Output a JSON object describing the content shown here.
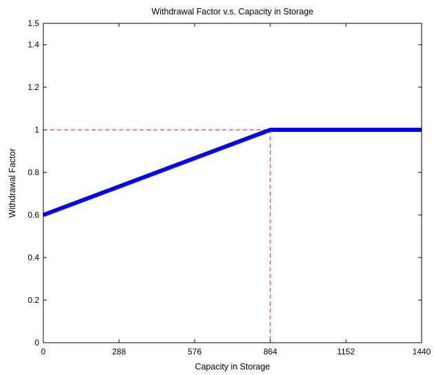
{
  "chart_data": {
    "type": "line",
    "title": "Withdrawal Factor v.s. Capacity in Storage",
    "xlabel": "Capacity in Storage",
    "ylabel": "Withdrawal Factor",
    "xlim": [
      0,
      1440
    ],
    "ylim": [
      0,
      1.5
    ],
    "xticks": [
      0,
      288,
      576,
      864,
      1152,
      1440
    ],
    "yticks": [
      0,
      0.2,
      0.4,
      0.6,
      0.8,
      1,
      1.2,
      1.4,
      1.5
    ],
    "grid": false,
    "series": [
      {
        "style": "solid-thick",
        "color": "#0000ff",
        "x": [
          0,
          864,
          1440
        ],
        "y": [
          0.6,
          1,
          1
        ]
      }
    ],
    "reference_lines": [
      {
        "style": "dashed",
        "color": "#ff0000",
        "x": [
          0,
          864,
          864
        ],
        "y": [
          1,
          1,
          0
        ]
      }
    ]
  }
}
